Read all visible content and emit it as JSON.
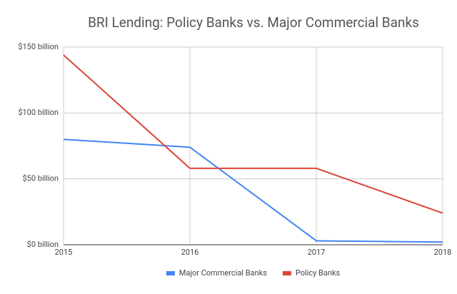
{
  "chart_data": {
    "type": "line",
    "title": "BRI Lending: Policy Banks vs. Major Commercial Banks",
    "x": [
      2015,
      2016,
      2017,
      2018
    ],
    "series": [
      {
        "name": "Major Commercial Banks",
        "color": "#4285f4",
        "values": [
          80,
          74,
          3,
          2
        ]
      },
      {
        "name": "Policy Banks",
        "color": "#db4437",
        "values": [
          144,
          58,
          58,
          24
        ]
      }
    ],
    "xlim": [
      2015,
      2018
    ],
    "xticks": [
      2015,
      2016,
      2017,
      2018
    ],
    "ylim": [
      0,
      150
    ],
    "yticks": [
      {
        "value": 0,
        "label": "$0 billion"
      },
      {
        "value": 50,
        "label": "$50 billion"
      },
      {
        "value": 100,
        "label": "$100 billion"
      },
      {
        "value": 150,
        "label": "$150 billion"
      }
    ],
    "grid": true,
    "legend": "bottom"
  }
}
